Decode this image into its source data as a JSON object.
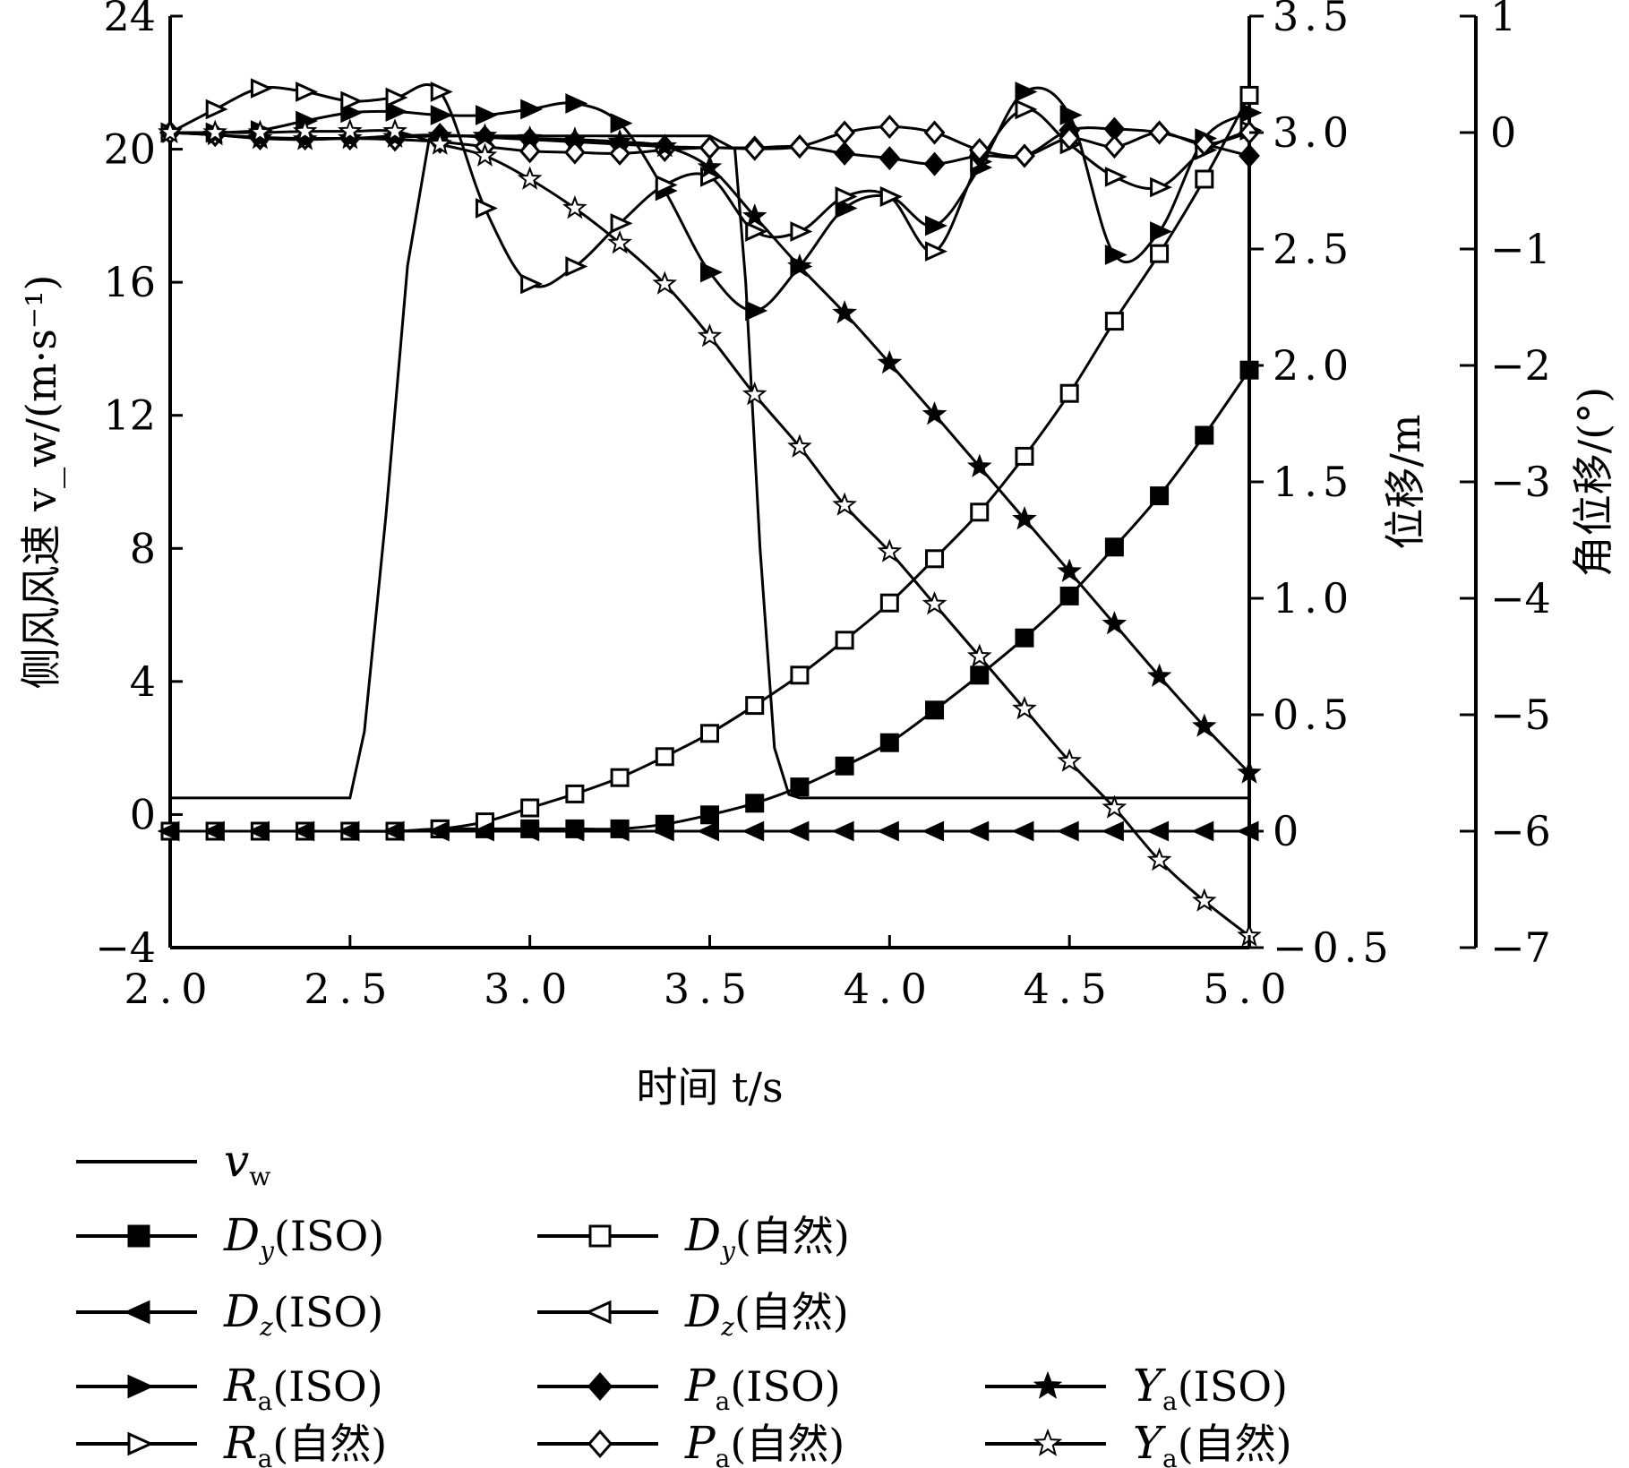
{
  "chart_data": {
    "type": "line",
    "xlabel": "时间 t/s",
    "xlim": [
      2.0,
      5.0
    ],
    "xticks": [
      "2.0",
      "2.5",
      "3.0",
      "3.5",
      "4.0",
      "4.5",
      "5.0"
    ],
    "y_left": {
      "label": "侧风风速 v_w/(m·s⁻¹)",
      "ylim": [
        -4,
        24
      ],
      "ticks": [
        "−4",
        "0",
        "4",
        "8",
        "12",
        "16",
        "20",
        "24"
      ]
    },
    "y_mid": {
      "label": "位移/m",
      "ylim": [
        -0.5,
        3.5
      ],
      "ticks": [
        "−0.5",
        "0",
        "0.5",
        "1.0",
        "1.5",
        "2.0",
        "2.5",
        "3.0",
        "3.5"
      ]
    },
    "y_right": {
      "label": "角位移/(°)",
      "ylim": [
        -7,
        1
      ],
      "ticks": [
        "−7",
        "−6",
        "−5",
        "−4",
        "−3",
        "−2",
        "−1",
        "0",
        "1"
      ]
    },
    "grid": false,
    "legend": "bottom",
    "series": [
      {
        "key": "vw",
        "axis": "y_left",
        "marker": "none",
        "legend_main": "v",
        "legend_sub": "w",
        "legend_suffix": "",
        "x": [
          2.0,
          2.5,
          2.54,
          2.6,
          2.66,
          2.72,
          2.75,
          3.0,
          3.5,
          3.57,
          3.6,
          3.64,
          3.68,
          3.72,
          3.75,
          4.0,
          4.5,
          5.0
        ],
        "values": [
          0.5,
          0.5,
          2.5,
          9.0,
          16.5,
          20.3,
          20.4,
          20.4,
          20.4,
          20.0,
          16.0,
          8.0,
          2.0,
          0.6,
          0.5,
          0.5,
          0.5,
          0.5
        ]
      },
      {
        "key": "Dy_ISO",
        "axis": "y_mid",
        "marker": "square",
        "fill": "black",
        "legend_main": "D",
        "legend_sub": "y",
        "legend_suffix": "(ISO)",
        "x": [
          2.0,
          2.125,
          2.25,
          2.375,
          2.5,
          2.625,
          2.75,
          2.875,
          3.0,
          3.125,
          3.25,
          3.375,
          3.5,
          3.625,
          3.75,
          3.875,
          4.0,
          4.125,
          4.25,
          4.375,
          4.5,
          4.625,
          4.75,
          4.875,
          5.0
        ],
        "values": [
          0,
          0,
          0,
          0,
          0,
          0,
          0.01,
          0.01,
          0.01,
          0.01,
          0.01,
          0.03,
          0.07,
          0.12,
          0.19,
          0.28,
          0.38,
          0.52,
          0.67,
          0.83,
          1.01,
          1.22,
          1.44,
          1.7,
          1.98
        ]
      },
      {
        "key": "Dy_nat",
        "axis": "y_mid",
        "marker": "square",
        "fill": "white",
        "legend_main": "D",
        "legend_sub": "y",
        "legend_suffix": "(自然)",
        "x": [
          2.0,
          2.125,
          2.25,
          2.375,
          2.5,
          2.625,
          2.75,
          2.875,
          3.0,
          3.125,
          3.25,
          3.375,
          3.5,
          3.625,
          3.75,
          3.875,
          4.0,
          4.125,
          4.25,
          4.375,
          4.5,
          4.625,
          4.75,
          4.875,
          5.0
        ],
        "values": [
          0,
          0,
          0,
          0,
          0,
          0,
          0.01,
          0.04,
          0.1,
          0.16,
          0.23,
          0.32,
          0.42,
          0.54,
          0.67,
          0.82,
          0.98,
          1.17,
          1.37,
          1.61,
          1.88,
          2.19,
          2.48,
          2.8,
          3.16
        ]
      },
      {
        "key": "Dz_ISO",
        "axis": "y_mid",
        "marker": "left-triangle",
        "fill": "black",
        "legend_main": "D",
        "legend_sub": "z",
        "legend_suffix": "(ISO)",
        "x": [
          2.0,
          2.125,
          2.25,
          2.375,
          2.5,
          2.625,
          2.75,
          2.875,
          3.0,
          3.125,
          3.25,
          3.375,
          3.5,
          3.625,
          3.75,
          3.875,
          4.0,
          4.125,
          4.25,
          4.375,
          4.5,
          4.625,
          4.75,
          4.875,
          5.0
        ],
        "values": [
          0,
          0,
          0,
          0,
          0,
          0,
          0,
          0,
          0,
          0,
          0,
          0,
          0,
          0,
          0,
          0,
          0,
          0,
          0,
          0,
          0,
          0,
          0,
          0,
          0
        ]
      },
      {
        "key": "Dz_nat",
        "axis": "y_mid",
        "marker": "left-triangle",
        "fill": "white",
        "legend_main": "D",
        "legend_sub": "z",
        "legend_suffix": "(自然)",
        "x": [],
        "values": []
      },
      {
        "key": "Ra_ISO",
        "axis": "y_right",
        "marker": "right-triangle",
        "fill": "black",
        "legend_main": "R",
        "legend_sub": "a",
        "legend_suffix": "(ISO)",
        "x": [
          2.0,
          2.125,
          2.25,
          2.375,
          2.5,
          2.625,
          2.75,
          2.875,
          3.0,
          3.125,
          3.25,
          3.375,
          3.5,
          3.625,
          3.75,
          3.875,
          4.0,
          4.125,
          4.25,
          4.375,
          4.5,
          4.625,
          4.75,
          4.875,
          5.0
        ],
        "values": [
          0,
          0,
          0.02,
          0.1,
          0.17,
          0.18,
          0.15,
          0.15,
          0.2,
          0.25,
          0.08,
          -0.5,
          -1.2,
          -1.53,
          -1.15,
          -0.65,
          -0.55,
          -0.8,
          -0.3,
          0.35,
          0.15,
          -1.05,
          -0.85,
          -0.05,
          0.17
        ]
      },
      {
        "key": "Ra_nat",
        "axis": "y_right",
        "marker": "right-triangle",
        "fill": "white",
        "legend_main": "R",
        "legend_sub": "a",
        "legend_suffix": "(自然)",
        "x": [
          2.0,
          2.125,
          2.25,
          2.375,
          2.5,
          2.625,
          2.75,
          2.875,
          3.0,
          3.125,
          3.25,
          3.375,
          3.5,
          3.625,
          3.75,
          3.875,
          4.0,
          4.125,
          4.25,
          4.375,
          4.5,
          4.625,
          4.75,
          4.875,
          5.0
        ],
        "values": [
          0,
          0.2,
          0.38,
          0.35,
          0.27,
          0.3,
          0.35,
          -0.65,
          -1.3,
          -1.15,
          -0.78,
          -0.45,
          -0.38,
          -0.85,
          -0.85,
          -0.55,
          -0.55,
          -1.02,
          -0.25,
          0.2,
          -0.1,
          -0.38,
          -0.47,
          -0.15,
          0.02
        ]
      },
      {
        "key": "Pa_ISO",
        "axis": "y_right",
        "marker": "diamond",
        "fill": "black",
        "legend_main": "P",
        "legend_sub": "a",
        "legend_suffix": "(ISO)",
        "x": [
          2.0,
          2.125,
          2.25,
          2.375,
          2.5,
          2.625,
          2.75,
          2.875,
          3.0,
          3.125,
          3.25,
          3.375,
          3.5,
          3.625,
          3.75,
          3.875,
          4.0,
          4.125,
          4.25,
          4.375,
          4.5,
          4.625,
          4.75,
          4.875,
          5.0
        ],
        "values": [
          0,
          -0.02,
          -0.05,
          -0.05,
          -0.05,
          -0.03,
          -0.02,
          -0.04,
          -0.06,
          -0.08,
          -0.1,
          -0.12,
          -0.13,
          -0.13,
          -0.12,
          -0.18,
          -0.22,
          -0.27,
          -0.2,
          -0.2,
          0.02,
          0.03,
          0,
          -0.1,
          -0.2
        ]
      },
      {
        "key": "Pa_nat",
        "axis": "y_right",
        "marker": "diamond",
        "fill": "white",
        "legend_main": "P",
        "legend_sub": "a",
        "legend_suffix": "(自然)",
        "x": [
          2.0,
          2.125,
          2.25,
          2.375,
          2.5,
          2.625,
          2.75,
          2.875,
          3.0,
          3.125,
          3.25,
          3.375,
          3.5,
          3.625,
          3.75,
          3.875,
          4.0,
          4.125,
          4.25,
          4.375,
          4.5,
          4.625,
          4.75,
          4.875,
          5.0
        ],
        "values": [
          0,
          -0.02,
          -0.04,
          -0.05,
          -0.05,
          -0.06,
          -0.08,
          -0.12,
          -0.16,
          -0.17,
          -0.18,
          -0.15,
          -0.13,
          -0.14,
          -0.12,
          0,
          0.05,
          0,
          -0.15,
          -0.2,
          -0.05,
          -0.12,
          0,
          -0.1,
          0
        ]
      },
      {
        "key": "Ya_ISO",
        "axis": "y_right",
        "marker": "star",
        "fill": "black",
        "legend_main": "Y",
        "legend_sub": "a",
        "legend_suffix": "(ISO)",
        "x": [
          2.0,
          2.125,
          2.25,
          2.375,
          2.5,
          2.625,
          2.75,
          2.875,
          3.0,
          3.125,
          3.25,
          3.375,
          3.5,
          3.625,
          3.75,
          3.875,
          4.0,
          4.125,
          4.25,
          4.375,
          4.5,
          4.625,
          4.75,
          4.875,
          5.0
        ],
        "values": [
          0,
          -0.02,
          -0.05,
          -0.06,
          -0.05,
          -0.04,
          -0.03,
          -0.03,
          -0.05,
          -0.06,
          -0.08,
          -0.12,
          -0.3,
          -0.72,
          -1.15,
          -1.55,
          -1.98,
          -2.42,
          -2.87,
          -3.32,
          -3.77,
          -4.22,
          -4.67,
          -5.1,
          -5.5
        ]
      },
      {
        "key": "Ya_nat",
        "axis": "y_right",
        "marker": "star",
        "fill": "white",
        "legend_main": "Y",
        "legend_sub": "a",
        "legend_suffix": "(自然)",
        "x": [
          2.0,
          2.125,
          2.25,
          2.375,
          2.5,
          2.625,
          2.75,
          2.875,
          3.0,
          3.125,
          3.25,
          3.375,
          3.5,
          3.625,
          3.75,
          3.875,
          4.0,
          4.125,
          4.25,
          4.375,
          4.5,
          4.625,
          4.75,
          4.875,
          5.0
        ],
        "values": [
          0,
          0,
          0,
          0.01,
          0.01,
          0.01,
          -0.1,
          -0.2,
          -0.4,
          -0.65,
          -0.95,
          -1.3,
          -1.75,
          -2.25,
          -2.7,
          -3.2,
          -3.6,
          -4.05,
          -4.5,
          -4.95,
          -5.4,
          -5.8,
          -6.25,
          -6.6,
          -6.9
        ]
      }
    ]
  }
}
